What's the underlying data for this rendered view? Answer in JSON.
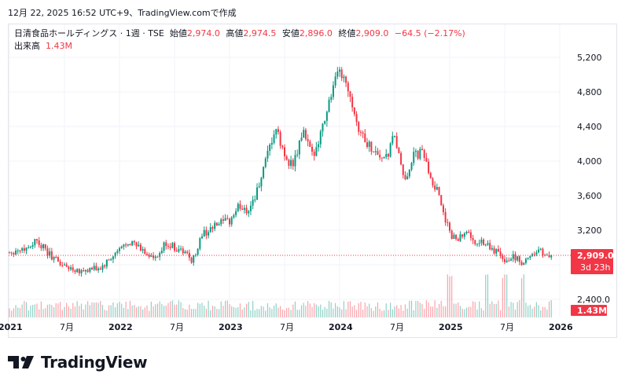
{
  "header": {
    "caption": "12月 22, 2025 16:52 UTC+9、TradingView.comで作成"
  },
  "legend": {
    "symbol": "日清食品ホールディングス · 1週 · TSE",
    "open_label": "始値",
    "open": "2,974.0",
    "high_label": "高値",
    "high": "2,974.5",
    "low_label": "安値",
    "low": "2,896.0",
    "close_label": "終値",
    "close": "2,909.0",
    "change": "−64.5 (−2.17%)",
    "volume_label": "出来高",
    "volume": "1.43M"
  },
  "price_badge": {
    "price": "2,909.0",
    "countdown": "3d 23h"
  },
  "volume_badge": "1.43M",
  "brand": {
    "name": "TradingView"
  },
  "colors": {
    "up": "#089981",
    "down": "#f23645",
    "grid": "#f0f3fa",
    "text": "#131722"
  },
  "chart_data": {
    "type": "candlestick",
    "interval": "1W",
    "y_axis": {
      "ticks": [
        2400,
        2800,
        3200,
        3600,
        4000,
        4400,
        4800,
        5200
      ],
      "tick_labels": [
        "2,400.0",
        "",
        "3,200",
        "3,600",
        "4,000",
        "4,400",
        "4,800",
        "5,200"
      ],
      "range": [
        2320,
        5300
      ]
    },
    "x_axis": {
      "tick_labels": [
        "2021",
        "7月",
        "2022",
        "7月",
        "2023",
        "7月",
        "2024",
        "7月",
        "2025",
        "7月",
        "2026"
      ],
      "range": [
        "2021-01",
        "2026-01"
      ]
    },
    "last_price": 2909.0,
    "price_path": [
      [
        "2021-01",
        2950
      ],
      [
        "2021-03",
        3000
      ],
      [
        "2021-04",
        3100
      ],
      [
        "2021-05",
        2950
      ],
      [
        "2021-07",
        2780
      ],
      [
        "2021-09",
        2730
      ],
      [
        "2021-11",
        2760
      ],
      [
        "2021-12",
        2860
      ],
      [
        "2022-02",
        3080
      ],
      [
        "2022-04",
        2930
      ],
      [
        "2022-05",
        2850
      ],
      [
        "2022-06",
        3050
      ],
      [
        "2022-08",
        2950
      ],
      [
        "2022-09",
        2850
      ],
      [
        "2022-10",
        3150
      ],
      [
        "2022-12",
        3280
      ],
      [
        "2023-01",
        3300
      ],
      [
        "2023-02",
        3480
      ],
      [
        "2023-03",
        3430
      ],
      [
        "2023-04",
        3650
      ],
      [
        "2023-05",
        4000
      ],
      [
        "2023-06",
        4380
      ],
      [
        "2023-07",
        4050
      ],
      [
        "2023-08",
        3950
      ],
      [
        "2023-09",
        4350
      ],
      [
        "2023-10",
        4050
      ],
      [
        "2023-11",
        4350
      ],
      [
        "2023-12",
        4750
      ],
      [
        "2024-01",
        5050
      ],
      [
        "2024-02",
        4850
      ],
      [
        "2024-03",
        4400
      ],
      [
        "2024-04",
        4200
      ],
      [
        "2024-05",
        4100
      ],
      [
        "2024-06",
        4000
      ],
      [
        "2024-07",
        4300
      ],
      [
        "2024-08",
        3750
      ],
      [
        "2024-09",
        4050
      ],
      [
        "2024-10",
        4100
      ],
      [
        "2024-11",
        3800
      ],
      [
        "2024-12",
        3550
      ],
      [
        "2025-01",
        3150
      ],
      [
        "2025-02",
        3100
      ],
      [
        "2025-03",
        3200
      ],
      [
        "2025-04",
        3050
      ],
      [
        "2025-05",
        3050
      ],
      [
        "2025-06",
        2950
      ],
      [
        "2025-07",
        2850
      ],
      [
        "2025-08",
        2900
      ],
      [
        "2025-09",
        2800
      ],
      [
        "2025-10",
        2950
      ],
      [
        "2025-11",
        2950
      ],
      [
        "2025-12",
        2909
      ]
    ],
    "volume": {
      "last": "1.43M",
      "scale": "relative 0-1",
      "peak_weeks": [
        "2025-01",
        "2025-05",
        "2025-07",
        "2025-09"
      ]
    }
  }
}
